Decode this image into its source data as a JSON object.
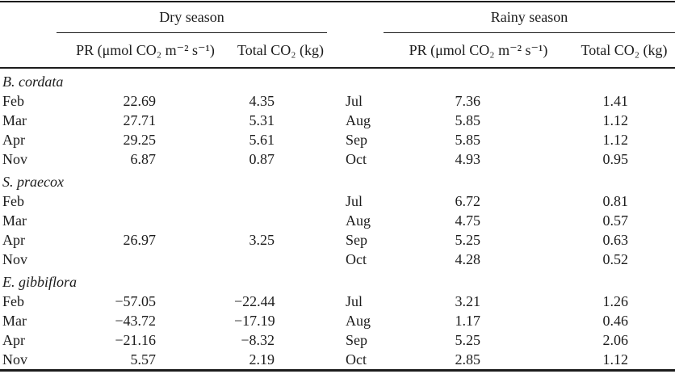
{
  "table": {
    "season_groups": {
      "dry": "Dry season",
      "rainy": "Rainy season"
    },
    "column_headers": {
      "pr": "PR (μmol CO₂ m⁻² s⁻¹)",
      "total": "Total CO₂ (kg)"
    },
    "sections": [
      {
        "species": "B. cordata",
        "rows": [
          {
            "dry_month": "Feb",
            "dry_pr": "22.69",
            "dry_total": "4.35",
            "rainy_month": "Jul",
            "rainy_pr": "7.36",
            "rainy_total": "1.41"
          },
          {
            "dry_month": "Mar",
            "dry_pr": "27.71",
            "dry_total": "5.31",
            "rainy_month": "Aug",
            "rainy_pr": "5.85",
            "rainy_total": "1.12"
          },
          {
            "dry_month": "Apr",
            "dry_pr": "29.25",
            "dry_total": "5.61",
            "rainy_month": "Sep",
            "rainy_pr": "5.85",
            "rainy_total": "1.12"
          },
          {
            "dry_month": "Nov",
            "dry_pr": "6.87",
            "dry_total": "0.87",
            "rainy_month": "Oct",
            "rainy_pr": "4.93",
            "rainy_total": "0.95"
          }
        ]
      },
      {
        "species": "S. praecox",
        "rows": [
          {
            "dry_month": "Feb",
            "dry_pr": "",
            "dry_total": "",
            "rainy_month": "Jul",
            "rainy_pr": "6.72",
            "rainy_total": "0.81"
          },
          {
            "dry_month": "Mar",
            "dry_pr": "",
            "dry_total": "",
            "rainy_month": "Aug",
            "rainy_pr": "4.75",
            "rainy_total": "0.57"
          },
          {
            "dry_month": "Apr",
            "dry_pr": "26.97",
            "dry_total": "3.25",
            "rainy_month": "Sep",
            "rainy_pr": "5.25",
            "rainy_total": "0.63"
          },
          {
            "dry_month": "Nov",
            "dry_pr": "",
            "dry_total": "",
            "rainy_month": "Oct",
            "rainy_pr": "4.28",
            "rainy_total": "0.52"
          }
        ]
      },
      {
        "species": "E. gibbiflora",
        "rows": [
          {
            "dry_month": "Feb",
            "dry_pr": "−57.05",
            "dry_total": "−22.44",
            "rainy_month": "Jul",
            "rainy_pr": "3.21",
            "rainy_total": "1.26"
          },
          {
            "dry_month": "Mar",
            "dry_pr": "−43.72",
            "dry_total": "−17.19",
            "rainy_month": "Aug",
            "rainy_pr": "1.17",
            "rainy_total": "0.46"
          },
          {
            "dry_month": "Apr",
            "dry_pr": "−21.16",
            "dry_total": "−8.32",
            "rainy_month": "Sep",
            "rainy_pr": "5.25",
            "rainy_total": "2.06"
          },
          {
            "dry_month": "Nov",
            "dry_pr": "5.57",
            "dry_total": "2.19",
            "rainy_month": "Oct",
            "rainy_pr": "2.85",
            "rainy_total": "1.12"
          }
        ]
      }
    ]
  }
}
